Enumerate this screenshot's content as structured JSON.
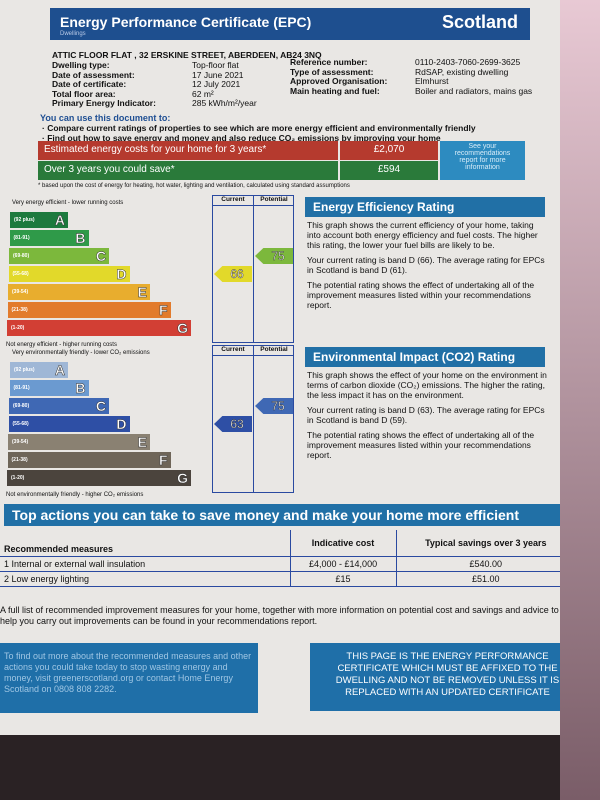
{
  "header": {
    "title": "Energy Performance Certificate (EPC)",
    "country": "Scotland",
    "subtitle": "Dwellings"
  },
  "address": "ATTIC FLOOR FLAT , 32 ERSKINE STREET, ABERDEEN, AB24 3NQ",
  "details_left": [
    {
      "k": "Dwelling type:",
      "v": "Top-floor flat"
    },
    {
      "k": "Date of assessment:",
      "v": "17 June 2021"
    },
    {
      "k": "Date of certificate:",
      "v": "12 July 2021"
    },
    {
      "k": "Total floor area:",
      "v": "62 m²"
    },
    {
      "k": "Primary Energy Indicator:",
      "v": "285 kWh/m²/year"
    }
  ],
  "details_right": [
    {
      "k": "Reference number:",
      "v": "0110-2403-7060-2699-3625"
    },
    {
      "k": "Type of assessment:",
      "v": "RdSAP, existing dwelling"
    },
    {
      "k": "Approved Organisation:",
      "v": "Elmhurst"
    },
    {
      "k": "Main heating and fuel:",
      "v": "Boiler and radiators, mains gas"
    }
  ],
  "use": {
    "heading": "You can use this document to:",
    "bullets": [
      "Compare current ratings of properties to see which are more energy efficient and environmentally friendly",
      "Find out how to save energy and money and also reduce CO₂ emissions by improving your home"
    ]
  },
  "costs": {
    "estimated_label": "Estimated energy costs for your home for 3 years*",
    "estimated_value": "£2,070",
    "save_label": "Over 3 years you could save*",
    "save_value": "£594",
    "see_report": "See your recommendations report for more information",
    "footnote": "* based upon the cost of energy for heating, hot water, lighting and ventilation, calculated using standard assumptions"
  },
  "efficiency": {
    "top_label": "Very energy efficient - lower running costs",
    "bottom_label": "Not energy efficient - higher running costs",
    "current_header": "Current",
    "potential_header": "Potential",
    "current": "66",
    "potential": "75",
    "bands": [
      {
        "range": "(92 plus)",
        "letter": "A",
        "color": "#1d7a3e"
      },
      {
        "range": "(81-91)",
        "letter": "B",
        "color": "#2f9a49"
      },
      {
        "range": "(69-80)",
        "letter": "C",
        "color": "#7cb83c"
      },
      {
        "range": "(55-68)",
        "letter": "D",
        "color": "#e2d92a"
      },
      {
        "range": "(39-54)",
        "letter": "E",
        "color": "#e8ad2e"
      },
      {
        "range": "(21-38)",
        "letter": "F",
        "color": "#e27b2c"
      },
      {
        "range": "(1-20)",
        "letter": "G",
        "color": "#d23f34"
      }
    ],
    "panel_title": "Energy Efficiency Rating",
    "p1": "This graph shows the current efficiency of your home, taking into account both energy efficiency and fuel costs. The higher this rating, the lower your fuel bills are likely to be.",
    "p2": "Your current rating is band D (66). The average rating for EPCs in Scotland is band D (61).",
    "p3": "The potential rating shows the effect of undertaking all of the improvement measures listed within your recommendations report."
  },
  "environment": {
    "top_label": "Very environmentally friendly - lower CO₂ emissions",
    "bottom_label": "Not environmentally friendly - higher CO₂ emissions",
    "current_header": "Current",
    "potential_header": "Potential",
    "current": "63",
    "potential": "75",
    "bands": [
      {
        "range": "(92 plus)",
        "letter": "A",
        "color": "#9fb7d6"
      },
      {
        "range": "(81-91)",
        "letter": "B",
        "color": "#6b9ad0"
      },
      {
        "range": "(69-80)",
        "letter": "C",
        "color": "#3f68b4"
      },
      {
        "range": "(55-68)",
        "letter": "D",
        "color": "#2e4fa5"
      },
      {
        "range": "(39-54)",
        "letter": "E",
        "color": "#8a8172"
      },
      {
        "range": "(21-38)",
        "letter": "F",
        "color": "#6e6558"
      },
      {
        "range": "(1-20)",
        "letter": "G",
        "color": "#4b443d"
      }
    ],
    "panel_title": "Environmental Impact (CO2) Rating",
    "p1": "This graph shows the effect of your home on the environment in terms of carbon dioxide (CO₂) emissions. The higher the rating, the less impact it has on the environment.",
    "p2": "Your current rating is band D (63). The average rating for EPCs in Scotland is band D (59).",
    "p3": "The potential rating shows the effect of undertaking all of the improvement measures listed within your recommendations report."
  },
  "actions": {
    "title": "Top actions you can take to save money and make your home more efficient",
    "headers": [
      "Recommended measures",
      "Indicative cost",
      "Typical savings over 3 years"
    ],
    "rows": [
      [
        "1 Internal or external wall insulation",
        "£4,000 - £14,000",
        "£540.00"
      ],
      [
        "2 Low energy lighting",
        "£15",
        "£51.00"
      ]
    ],
    "note": "A full list of recommended improvement measures for your home, together with more information on potential cost and savings and advice to help you carry out improvements can be found in your recommendations report."
  },
  "footer": {
    "left": "To find out more about the recommended measures and other actions you could take today to stop wasting energy and money, visit greenerscotland.org or contact Home Energy Scotland on 0808 808 2282.",
    "right": "THIS PAGE IS THE ENERGY PERFORMANCE CERTIFICATE WHICH MUST BE AFFIXED TO THE DWELLING AND NOT BE REMOVED UNLESS IT IS REPLACED WITH AN UPDATED CERTIFICATE"
  }
}
